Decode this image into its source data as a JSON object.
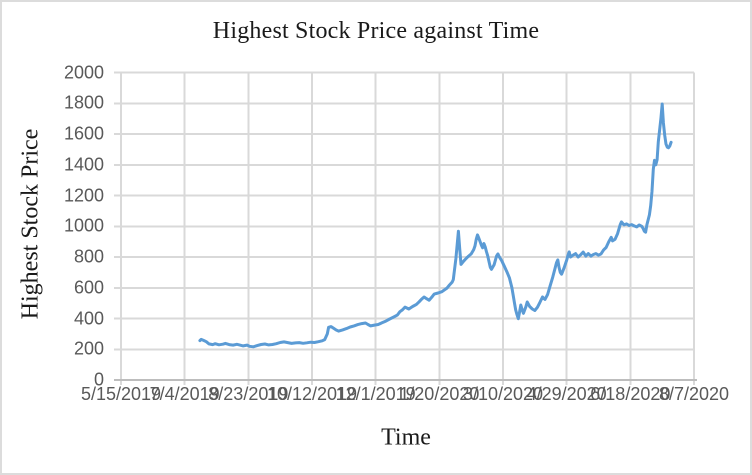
{
  "window": {
    "background": "#ffffff",
    "border_color": "#dcdcdc"
  },
  "colors": {
    "series_line": "#5B9BD5",
    "gridline": "#D9D9D9",
    "axis_line": "#BDBDBD",
    "tick_text": "#595959",
    "title_text": "#1a1a1a"
  },
  "chart_data": {
    "type": "line",
    "title": "Highest Stock Price against Time",
    "xlabel": "Time",
    "ylabel": "Highest Stock Price",
    "grid": true,
    "legend": false,
    "x_ticklabels": [
      "5/15/2019",
      "7/4/2019",
      "8/23/2019",
      "10/12/2019",
      "12/1/2019",
      "1/20/2020",
      "3/10/2020",
      "4/29/2020",
      "6/18/2020",
      "8/7/2020"
    ],
    "x_first_tick_date": "5/15/2019",
    "x_tick_interval_days": 50,
    "x_tick_days": [
      0,
      50,
      100,
      150,
      200,
      250,
      300,
      350,
      400,
      450
    ],
    "x_range_days": [
      0,
      450
    ],
    "y_ticklabels": [
      "0",
      "200",
      "400",
      "600",
      "800",
      "1000",
      "1200",
      "1400",
      "1600",
      "1800",
      "2000"
    ],
    "y_tick_values": [
      0,
      200,
      400,
      600,
      800,
      1000,
      1200,
      1400,
      1600,
      1800,
      2000
    ],
    "ylim": [
      0,
      2000
    ],
    "series": [
      {
        "name": "Highest Stock Price",
        "color": "#5B9BD5",
        "points_format": "[days_after_5/15/2019, price]",
        "points": [
          [
            62,
            256
          ],
          [
            63,
            264
          ],
          [
            65,
            257
          ],
          [
            67,
            249
          ],
          [
            69,
            235
          ],
          [
            72,
            230
          ],
          [
            74,
            236
          ],
          [
            77,
            229
          ],
          [
            80,
            233
          ],
          [
            82,
            238
          ],
          [
            85,
            230
          ],
          [
            88,
            227
          ],
          [
            91,
            232
          ],
          [
            93,
            228
          ],
          [
            96,
            222
          ],
          [
            99,
            227
          ],
          [
            101,
            219
          ],
          [
            104,
            216
          ],
          [
            107,
            224
          ],
          [
            110,
            231
          ],
          [
            113,
            234
          ],
          [
            116,
            228
          ],
          [
            119,
            231
          ],
          [
            122,
            236
          ],
          [
            125,
            244
          ],
          [
            128,
            248
          ],
          [
            131,
            243
          ],
          [
            134,
            238
          ],
          [
            137,
            241
          ],
          [
            140,
            243
          ],
          [
            143,
            239
          ],
          [
            146,
            242
          ],
          [
            149,
            246
          ],
          [
            152,
            244
          ],
          [
            155,
            249
          ],
          [
            158,
            255
          ],
          [
            160,
            263
          ],
          [
            162,
            300
          ],
          [
            163,
            343
          ],
          [
            165,
            347
          ],
          [
            167,
            336
          ],
          [
            169,
            325
          ],
          [
            171,
            318
          ],
          [
            174,
            326
          ],
          [
            177,
            334
          ],
          [
            180,
            345
          ],
          [
            183,
            352
          ],
          [
            186,
            360
          ],
          [
            189,
            367
          ],
          [
            192,
            371
          ],
          [
            194,
            361
          ],
          [
            196,
            352
          ],
          [
            199,
            357
          ],
          [
            202,
            361
          ],
          [
            205,
            372
          ],
          [
            208,
            383
          ],
          [
            211,
            397
          ],
          [
            214,
            409
          ],
          [
            217,
            422
          ],
          [
            219,
            444
          ],
          [
            221,
            456
          ],
          [
            223,
            474
          ],
          [
            226,
            462
          ],
          [
            229,
            478
          ],
          [
            232,
            492
          ],
          [
            234,
            508
          ],
          [
            236,
            525
          ],
          [
            238,
            540
          ],
          [
            240,
            529
          ],
          [
            242,
            519
          ],
          [
            244,
            538
          ],
          [
            246,
            559
          ],
          [
            249,
            566
          ],
          [
            252,
            574
          ],
          [
            254,
            586
          ],
          [
            256,
            598
          ],
          [
            258,
            618
          ],
          [
            260,
            636
          ],
          [
            261,
            653
          ],
          [
            263,
            790
          ],
          [
            265,
            968
          ],
          [
            266,
            855
          ],
          [
            267,
            752
          ],
          [
            269,
            772
          ],
          [
            271,
            790
          ],
          [
            273,
            806
          ],
          [
            275,
            820
          ],
          [
            277,
            848
          ],
          [
            278,
            872
          ],
          [
            279,
            917
          ],
          [
            280,
            944
          ],
          [
            281,
            923
          ],
          [
            282,
            900
          ],
          [
            283,
            877
          ],
          [
            284,
            860
          ],
          [
            285,
            888
          ],
          [
            286,
            866
          ],
          [
            287,
            836
          ],
          [
            288,
            808
          ],
          [
            290,
            733
          ],
          [
            291,
            720
          ],
          [
            293,
            749
          ],
          [
            295,
            807
          ],
          [
            296,
            820
          ],
          [
            297,
            802
          ],
          [
            299,
            776
          ],
          [
            301,
            740
          ],
          [
            303,
            705
          ],
          [
            305,
            665
          ],
          [
            307,
            600
          ],
          [
            308,
            550
          ],
          [
            309,
            500
          ],
          [
            310,
            455
          ],
          [
            311,
            425
          ],
          [
            312,
            399
          ],
          [
            313,
            443
          ],
          [
            314,
            488
          ],
          [
            315,
            458
          ],
          [
            316,
            434
          ],
          [
            318,
            477
          ],
          [
            319,
            507
          ],
          [
            321,
            478
          ],
          [
            323,
            462
          ],
          [
            325,
            452
          ],
          [
            327,
            473
          ],
          [
            329,
            505
          ],
          [
            331,
            540
          ],
          [
            333,
            524
          ],
          [
            335,
            556
          ],
          [
            337,
            612
          ],
          [
            339,
            668
          ],
          [
            341,
            730
          ],
          [
            342,
            762
          ],
          [
            343,
            781
          ],
          [
            344,
            734
          ],
          [
            345,
            700
          ],
          [
            346,
            688
          ],
          [
            348,
            730
          ],
          [
            350,
            780
          ],
          [
            351,
            810
          ],
          [
            352,
            833
          ],
          [
            353,
            800
          ],
          [
            355,
            812
          ],
          [
            357,
            822
          ],
          [
            359,
            800
          ],
          [
            361,
            815
          ],
          [
            363,
            832
          ],
          [
            365,
            806
          ],
          [
            367,
            822
          ],
          [
            369,
            806
          ],
          [
            371,
            816
          ],
          [
            373,
            822
          ],
          [
            375,
            812
          ],
          [
            377,
            820
          ],
          [
            379,
            846
          ],
          [
            381,
            862
          ],
          [
            383,
            898
          ],
          [
            385,
            928
          ],
          [
            386,
            905
          ],
          [
            388,
            916
          ],
          [
            390,
            952
          ],
          [
            392,
            1008
          ],
          [
            393,
            1028
          ],
          [
            395,
            1009
          ],
          [
            397,
            1015
          ],
          [
            399,
            1005
          ],
          [
            401,
            1011
          ],
          [
            403,
            1002
          ],
          [
            405,
            996
          ],
          [
            407,
            1008
          ],
          [
            409,
            1000
          ],
          [
            410,
            986
          ],
          [
            411,
            968
          ],
          [
            412,
            961
          ],
          [
            413,
            1010
          ],
          [
            415,
            1074
          ],
          [
            416,
            1135
          ],
          [
            417,
            1228
          ],
          [
            418,
            1371
          ],
          [
            419,
            1429
          ],
          [
            420,
            1400
          ],
          [
            421,
            1432
          ],
          [
            422,
            1549
          ],
          [
            423,
            1625
          ],
          [
            424,
            1700
          ],
          [
            425,
            1795
          ],
          [
            426,
            1672
          ],
          [
            427,
            1592
          ],
          [
            428,
            1534
          ],
          [
            429,
            1514
          ],
          [
            430,
            1510
          ],
          [
            431,
            1522
          ],
          [
            432,
            1546
          ]
        ]
      }
    ]
  }
}
